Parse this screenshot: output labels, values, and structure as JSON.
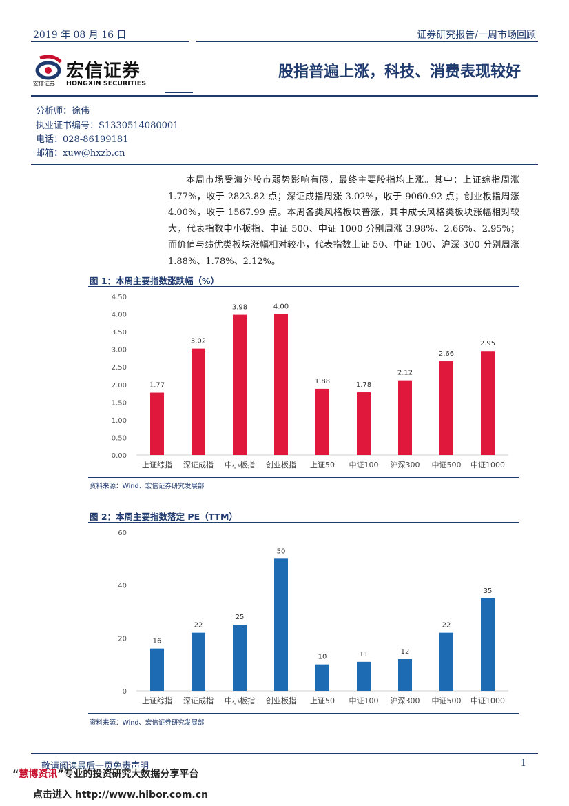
{
  "header": {
    "date": "2019 年 08 月 16 日",
    "report_type": "证券研究报告/一周市场回顾",
    "logo_cn": "宏信证券",
    "logo_en": "HONGXIN SECURITIES",
    "logo_sub": "宏信证券",
    "title": "股指普遍上涨，科技、消费表现较好"
  },
  "analyst": {
    "name": "分析师：徐伟",
    "license": "执业证书编号：S1330514080001",
    "phone": "电话：028-86199181",
    "email": "邮箱：xuw@hxzb.cn"
  },
  "summary": "本周市场受海外股市弱势影响有限，最终主要股指均上涨。其中：上证综指周涨 1.77%，收于 2823.82 点；深证成指周涨 3.02%，收于 9060.92 点；创业板指周涨 4.00%，收于 1567.99 点。本周各类风格板块普涨，其中成长风格类板块涨幅相对较大，代表指数中小板指、中证 500、中证 1000 分别周涨 3.98%、2.66%、2.95%；而价值与绩优类板块涨幅相对较小，代表指数上证 50、中证 100、沪深 300 分别周涨 1.88%、1.78%、2.12%。",
  "figures": {
    "fig1_title": "图 1：本周主要指数涨跌幅（%）",
    "fig1_source": "资料来源：Wind、宏信证券研究发展部",
    "fig2_title": "图 2：本周主要指数落定 PE（TTM）",
    "fig2_source": "资料来源：Wind、宏信证券研究发展部"
  },
  "chart_data": [
    {
      "type": "bar",
      "categories": [
        "上证综指",
        "深证成指",
        "中小板指",
        "创业板指",
        "上证50",
        "中证100",
        "沪深300",
        "中证500",
        "中证1000"
      ],
      "values": [
        1.77,
        3.02,
        3.98,
        4.0,
        1.88,
        1.78,
        2.12,
        2.66,
        2.95
      ],
      "value_labels": [
        "1.77",
        "3.02",
        "3.98",
        "4.00",
        "1.88",
        "1.78",
        "2.12",
        "2.66",
        "2.95"
      ],
      "yticks": [
        "0.00",
        "0.50",
        "1.00",
        "1.50",
        "2.00",
        "2.50",
        "3.00",
        "3.50",
        "4.00",
        "4.50"
      ],
      "ylim": [
        0,
        4.5
      ],
      "color": "#e0193c",
      "grid": false
    },
    {
      "type": "bar",
      "categories": [
        "上证综指",
        "深证成指",
        "中小板指",
        "创业板指",
        "上证50",
        "中证100",
        "沪深300",
        "中证500",
        "中证1000"
      ],
      "values": [
        16,
        22,
        25,
        50,
        10,
        11,
        12,
        22,
        35
      ],
      "value_labels": [
        "16",
        "22",
        "25",
        "50",
        "10",
        "11",
        "12",
        "22",
        "35"
      ],
      "yticks": [
        "0",
        "20",
        "40",
        "60"
      ],
      "ylim": [
        0,
        60
      ],
      "color": "#1c6bb3",
      "grid": false
    }
  ],
  "footer": {
    "disclaimer": "敬请阅读最后一页免责声明",
    "page": "1",
    "promo_quote_open": "“",
    "promo_brand": "慧博资讯",
    "promo_rest": "”专业的投资研究大数据分享平台",
    "promo_link": "点击进入 http://www.hibor.com.cn"
  }
}
